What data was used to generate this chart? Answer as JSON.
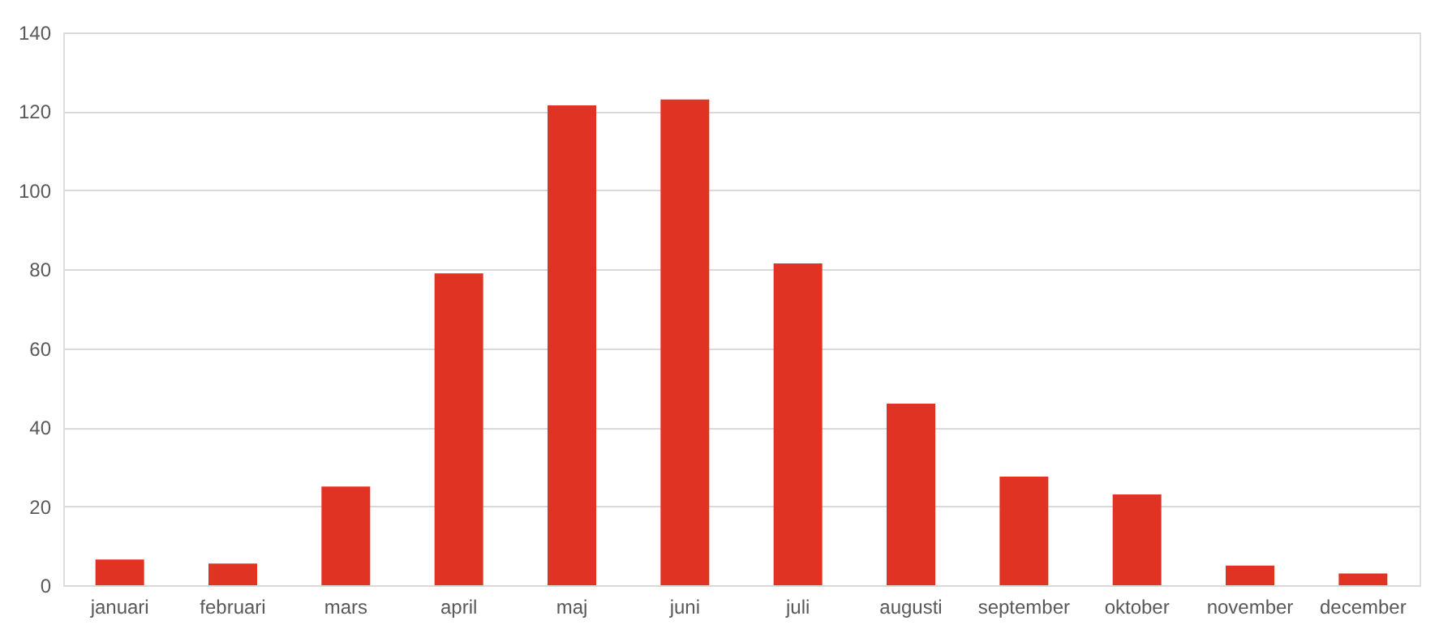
{
  "chart_data": {
    "type": "bar",
    "categories": [
      "januari",
      "februari",
      "mars",
      "april",
      "maj",
      "juni",
      "juli",
      "augusti",
      "september",
      "oktober",
      "november",
      "december"
    ],
    "values": [
      6.5,
      5.5,
      25,
      79,
      121.5,
      123,
      81.5,
      46,
      27.5,
      23,
      5,
      3
    ],
    "color": "#e03323",
    "ylim": [
      0,
      140
    ],
    "yticks": [
      0,
      20,
      40,
      60,
      80,
      100,
      120,
      140
    ],
    "grid": "y"
  }
}
